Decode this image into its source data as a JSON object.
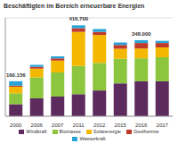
{
  "chart_data": {
    "type": "bar",
    "title": "Beschäftigten im Bereich erneuerbare Energien",
    "categories": [
      "2000",
      "2006",
      "2007",
      "2011",
      "2012",
      "2015",
      "2016",
      "2017"
    ],
    "series": [
      {
        "name": "Windkraft",
        "color": "#5e2b5f",
        "values": [
          55000,
          82000,
          90000,
          101000,
          118000,
          150000,
          160000,
          160000
        ]
      },
      {
        "name": "Biomasse",
        "color": "#8cc63f",
        "values": [
          50000,
          96000,
          110000,
          129000,
          126000,
          113000,
          105000,
          110000
        ]
      },
      {
        "name": "Solarenergie",
        "color": "#f5b800",
        "values": [
          30000,
          40000,
          55000,
          156000,
          128000,
          46000,
          45000,
          45000
        ]
      },
      {
        "name": "Geothermie",
        "color": "#c0392b",
        "values": [
          5000,
          8000,
          10000,
          17000,
          14000,
          17000,
          25000,
          20000
        ]
      },
      {
        "name": "Wasserkraft",
        "color": "#29a3d6",
        "values": [
          20000,
          9000,
          9000,
          13000,
          13000,
          12000,
          13000,
          10000
        ]
      }
    ],
    "stacked": true,
    "ylim": [
      0,
      450000
    ],
    "yticks": [
      0,
      100000,
      200000,
      300000,
      400000
    ],
    "grid": true,
    "tick_labels": "x",
    "legend": "bottom",
    "annotations": [
      {
        "x": "2000",
        "y": 160156,
        "text": "160.156"
      },
      {
        "x": "2011",
        "y": 416700,
        "text": "416.700"
      },
      {
        "x": "2016",
        "y": 348000,
        "text": "348.000"
      }
    ]
  }
}
